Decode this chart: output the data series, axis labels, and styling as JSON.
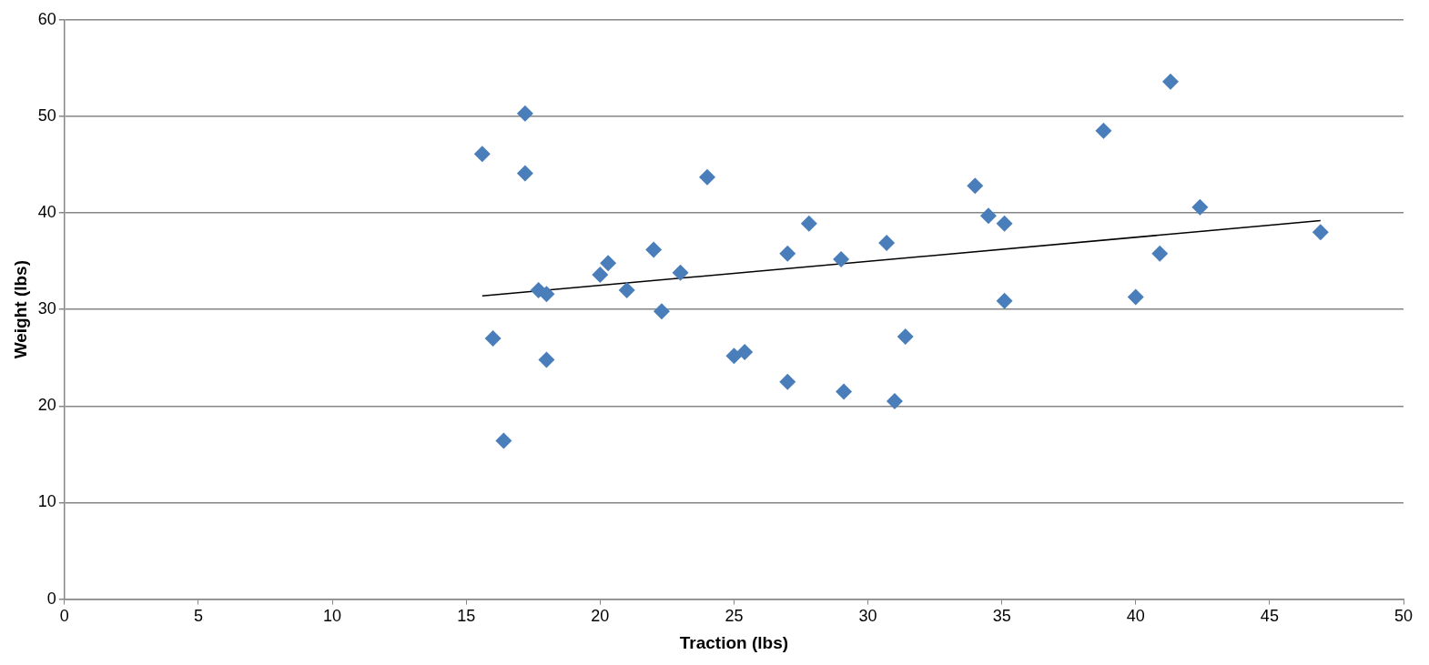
{
  "chart_data": {
    "type": "scatter",
    "xlabel": "Traction (lbs)",
    "ylabel": "Weight (lbs)",
    "xlim": [
      0,
      50
    ],
    "xticks": [
      0,
      5,
      10,
      15,
      20,
      25,
      30,
      35,
      40,
      45,
      50
    ],
    "ylim": [
      0,
      60
    ],
    "yticks": [
      0,
      10,
      20,
      30,
      40,
      50,
      60
    ],
    "grid": "y",
    "legend": false,
    "series": [
      {
        "color": "#4a7ebb",
        "marker": "diamond",
        "x": [
          15.6,
          16.0,
          16.4,
          17.2,
          17.2,
          17.7,
          18.0,
          18.0,
          20.0,
          20.3,
          21.0,
          22.0,
          22.3,
          23.0,
          24.0,
          25.0,
          25.4,
          27.0,
          27.0,
          27.8,
          29.0,
          29.1,
          30.7,
          31.0,
          31.4,
          34.0,
          34.5,
          35.1,
          35.1,
          38.8,
          40.0,
          40.9,
          41.3,
          42.4,
          46.9
        ],
        "values": [
          46.1,
          27.0,
          16.4,
          50.3,
          44.1,
          32.0,
          31.6,
          24.8,
          33.6,
          34.8,
          32.0,
          36.2,
          29.8,
          33.8,
          43.7,
          25.2,
          25.6,
          35.8,
          22.5,
          38.9,
          35.2,
          21.5,
          36.9,
          20.5,
          27.2,
          42.8,
          39.7,
          38.9,
          30.9,
          48.5,
          31.3,
          35.8,
          53.6,
          40.6,
          38.0
        ]
      },
      {
        "type": "line",
        "marker": "none",
        "color": "#000000",
        "x": [
          15.6,
          46.9
        ],
        "values": [
          31.4,
          39.2
        ]
      }
    ]
  }
}
